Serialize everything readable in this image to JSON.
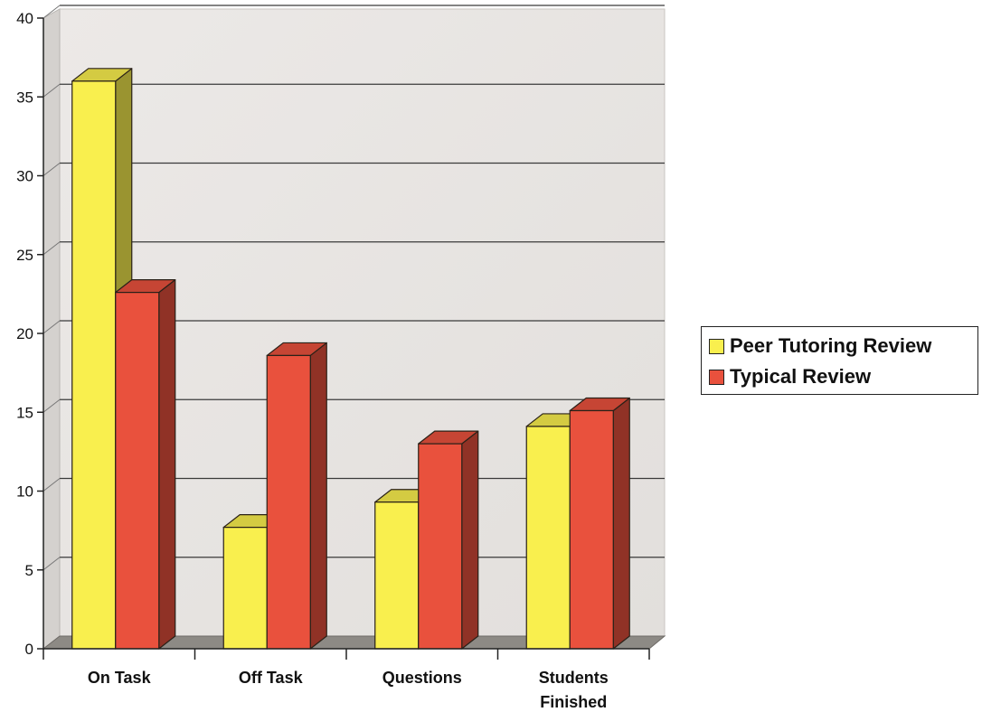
{
  "chart_data": {
    "type": "bar",
    "categories": [
      "On Task",
      "Off Task",
      "Questions",
      "Students Finished"
    ],
    "category_lines": [
      [
        "On Task"
      ],
      [
        "Off Task"
      ],
      [
        "Questions"
      ],
      [
        "Students",
        "Finished"
      ]
    ],
    "series": [
      {
        "name": "Peer Tutoring Review",
        "values": [
          36,
          7.7,
          9.3,
          14.1
        ],
        "color": "#f9ef4e"
      },
      {
        "name": "Typical Review",
        "values": [
          22.6,
          18.6,
          13,
          15.1
        ],
        "color": "#e9513d"
      }
    ],
    "title": "",
    "xlabel": "",
    "ylabel": "",
    "ylim": [
      0,
      40
    ],
    "yticks": [
      0,
      5,
      10,
      15,
      20,
      25,
      30,
      35,
      40
    ],
    "grid": true,
    "style": "3d-bar",
    "legend_position": "right"
  },
  "legend": {
    "items": [
      {
        "label": "Peer Tutoring Review",
        "color": "#f9ef4e"
      },
      {
        "label": "Typical Review",
        "color": "#e9513d"
      }
    ]
  }
}
